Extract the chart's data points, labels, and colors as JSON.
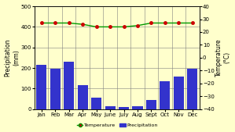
{
  "months": [
    "Jan",
    "Feb",
    "Mar",
    "Apr",
    "May",
    "June",
    "July",
    "Aug",
    "Sept",
    "Oct",
    "Nov",
    "Dec"
  ],
  "precipitation": [
    215,
    195,
    230,
    115,
    55,
    15,
    10,
    15,
    45,
    135,
    160,
    195
  ],
  "temperature": [
    27,
    27,
    27,
    26,
    24,
    24,
    24,
    25,
    27,
    27,
    27,
    27
  ],
  "bar_color": "#3333cc",
  "line_color": "#009900",
  "marker_color": "#cc0000",
  "background_color": "#ffffcc",
  "ylabel_left": "Precipitation\n(mm)",
  "ylabel_right": "Temperature\n(°C)",
  "ylim_left": [
    0,
    500
  ],
  "ylim_right": [
    -40,
    40
  ],
  "yticks_left": [
    0,
    100,
    200,
    300,
    400,
    500
  ],
  "yticks_right": [
    -40,
    -30,
    -20,
    -10,
    0,
    10,
    20,
    30,
    40
  ],
  "legend_temp": "Temperature",
  "legend_precip": "Precipitation",
  "tick_fontsize": 5.0,
  "label_fontsize": 5.5
}
